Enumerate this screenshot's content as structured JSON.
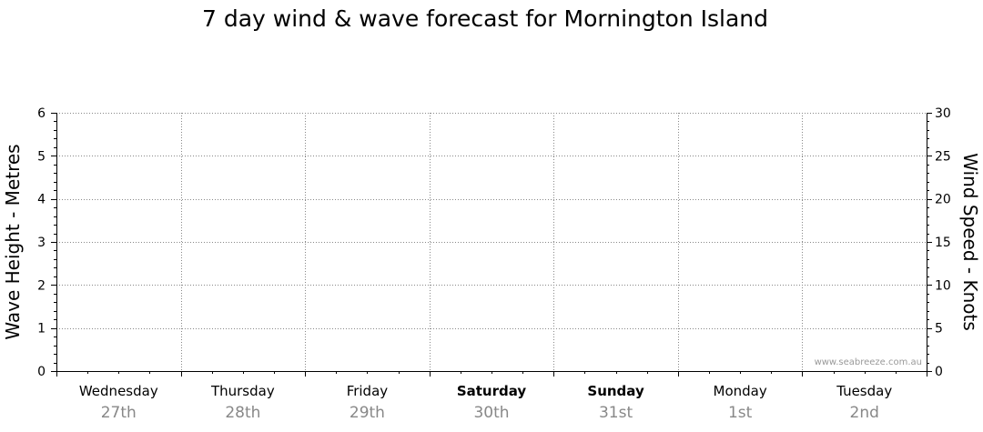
{
  "chart_data": {
    "type": "line",
    "title": "7 day wind & wave forecast for Mornington Island",
    "ylabel_left": "Wave Height - Metres",
    "ylabel_right": "Wind Speed - Knots",
    "ylim_left": [
      0,
      6
    ],
    "ylim_right": [
      0,
      30
    ],
    "yticks_left": [
      0,
      1,
      2,
      3,
      4,
      5,
      6
    ],
    "yticks_right": [
      0,
      5,
      10,
      15,
      20,
      25,
      30
    ],
    "grid": true,
    "days": [
      {
        "name": "Wednesday",
        "date": "27th",
        "weekend": false
      },
      {
        "name": "Thursday",
        "date": "28th",
        "weekend": false
      },
      {
        "name": "Friday",
        "date": "29th",
        "weekend": false
      },
      {
        "name": "Saturday",
        "date": "30th",
        "weekend": true
      },
      {
        "name": "Sunday",
        "date": "31st",
        "weekend": true
      },
      {
        "name": "Monday",
        "date": "1st",
        "weekend": false
      },
      {
        "name": "Tuesday",
        "date": "2nd",
        "weekend": false
      }
    ],
    "series": [],
    "watermark": "www.seabreeze.com.au",
    "colors": {
      "grid": "#888888",
      "axis": "#000000",
      "date_text": "#888888",
      "watermark": "#999999"
    }
  }
}
